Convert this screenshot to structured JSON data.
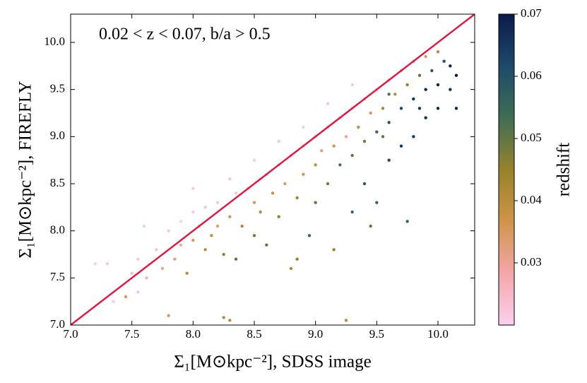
{
  "chart_data": {
    "type": "scatter",
    "annotation": "0.02 < z < 0.07, b/a > 0.5",
    "x_label": "Σ₁[M⊙kpc⁻²], SDSS image",
    "y_label": "Σ₁[M⊙kpc⁻²], FIREFLY",
    "colorbar_label": "redshift",
    "xlim": [
      7.0,
      10.3
    ],
    "ylim": [
      7.0,
      10.3
    ],
    "xticks": [
      {
        "value": 7,
        "label": "7.0"
      },
      {
        "value": 7.5,
        "label": "7.5"
      },
      {
        "value": 8,
        "label": "8.0"
      },
      {
        "value": 8.5,
        "label": "8.5"
      },
      {
        "value": 9,
        "label": "9.0"
      },
      {
        "value": 9.5,
        "label": "9.5"
      },
      {
        "value": 10,
        "label": "10.0"
      }
    ],
    "yticks": [
      {
        "value": 7,
        "label": "7.0"
      },
      {
        "value": 7.5,
        "label": "7.5"
      },
      {
        "value": 8,
        "label": "8.0"
      },
      {
        "value": 8.5,
        "label": "8.5"
      },
      {
        "value": 9,
        "label": "9.0"
      },
      {
        "value": 9.5,
        "label": "9.5"
      },
      {
        "value": 10,
        "label": "10.0"
      }
    ],
    "clim": [
      0.02,
      0.07
    ],
    "cticks": [
      0.03,
      0.04,
      0.05,
      0.06,
      0.07
    ],
    "colormap": [
      "#fbd0ee",
      "#f4a7a8",
      "#d0944a",
      "#97822c",
      "#3f6e54",
      "#1d4a6a",
      "#0c1a4a"
    ],
    "line_color": "#dc1c45",
    "x": [
      7.2,
      7.3,
      7.45,
      7.5,
      7.55,
      7.6,
      7.62,
      7.7,
      7.75,
      7.8,
      7.8,
      7.85,
      7.9,
      7.9,
      7.95,
      8.0,
      8.0,
      8.05,
      8.1,
      8.1,
      8.15,
      8.2,
      8.2,
      8.25,
      8.25,
      8.3,
      8.35,
      8.35,
      8.4,
      8.45,
      8.5,
      8.5,
      8.55,
      8.55,
      8.6,
      8.6,
      8.65,
      8.7,
      8.7,
      8.75,
      8.8,
      8.8,
      8.85,
      8.9,
      8.9,
      8.95,
      9.0,
      9.0,
      9.0,
      9.05,
      9.1,
      9.1,
      9.15,
      9.15,
      9.2,
      9.2,
      9.25,
      9.25,
      9.3,
      9.3,
      9.3,
      9.35,
      9.4,
      9.4,
      9.4,
      9.45,
      9.5,
      9.5,
      9.5,
      9.55,
      9.6,
      9.6,
      9.6,
      9.65,
      9.7,
      9.7,
      9.7,
      9.75,
      9.8,
      9.8,
      9.8,
      9.85,
      9.9,
      9.9,
      9.9,
      9.95,
      10.0,
      10.0,
      10.0,
      10.05,
      10.1,
      10.1,
      10.15,
      10.15,
      9.75,
      9.45,
      8.85,
      8.3,
      8.0,
      7.55,
      7.35,
      9.3,
      9.1,
      8.9,
      8.7,
      8.5,
      8.3,
      9.6,
      9.55,
      9.85
    ],
    "values": [
      7.65,
      7.65,
      7.3,
      7.55,
      7.7,
      8.05,
      7.5,
      7.8,
      7.6,
      7.1,
      8.0,
      7.7,
      8.1,
      7.85,
      7.55,
      8.2,
      7.9,
      8.05,
      7.8,
      8.25,
      7.95,
      8.3,
      8.05,
      7.75,
      7.08,
      8.15,
      8.4,
      7.7,
      8.05,
      8.45,
      8.3,
      7.95,
      8.55,
      8.2,
      8.6,
      7.85,
      8.4,
      8.7,
      8.15,
      8.5,
      7.6,
      8.8,
      8.35,
      8.9,
      8.6,
      7.95,
      9.0,
      8.7,
      8.3,
      8.85,
      9.1,
      8.5,
      7.8,
      8.9,
      9.2,
      8.7,
      7.05,
      9.0,
      9.3,
      8.8,
      8.2,
      9.1,
      9.4,
      8.95,
      8.5,
      9.25,
      9.5,
      9.05,
      8.3,
      9.3,
      9.6,
      9.15,
      8.75,
      9.45,
      9.7,
      9.3,
      8.9,
      9.55,
      9.8,
      9.4,
      9.0,
      9.65,
      9.85,
      9.5,
      9.2,
      9.7,
      9.9,
      9.55,
      9.3,
      9.8,
      9.75,
      9.5,
      9.65,
      9.3,
      8.1,
      8.05,
      7.7,
      7.05,
      8.45,
      7.35,
      7.25,
      9.55,
      9.35,
      9.1,
      8.95,
      8.75,
      8.55,
      9.45,
      9.0,
      9.3
    ],
    "c": [
      0.021,
      0.022,
      0.035,
      0.024,
      0.022,
      0.021,
      0.026,
      0.023,
      0.03,
      0.035,
      0.022,
      0.032,
      0.021,
      0.028,
      0.04,
      0.022,
      0.035,
      0.025,
      0.04,
      0.023,
      0.038,
      0.022,
      0.033,
      0.045,
      0.04,
      0.036,
      0.023,
      0.05,
      0.042,
      0.024,
      0.035,
      0.048,
      0.022,
      0.04,
      0.025,
      0.05,
      0.038,
      0.023,
      0.045,
      0.034,
      0.042,
      0.024,
      0.044,
      0.022,
      0.036,
      0.055,
      0.025,
      0.04,
      0.05,
      0.032,
      0.023,
      0.048,
      0.045,
      0.036,
      0.024,
      0.052,
      0.04,
      0.03,
      0.022,
      0.05,
      0.055,
      0.038,
      0.025,
      0.048,
      0.058,
      0.035,
      0.023,
      0.055,
      0.055,
      0.042,
      0.026,
      0.06,
      0.062,
      0.04,
      0.028,
      0.062,
      0.065,
      0.045,
      0.03,
      0.066,
      0.064,
      0.05,
      0.035,
      0.068,
      0.066,
      0.058,
      0.04,
      0.069,
      0.067,
      0.06,
      0.068,
      0.066,
      0.07,
      0.068,
      0.055,
      0.05,
      0.045,
      0.04,
      0.022,
      0.023,
      0.021,
      0.022,
      0.022,
      0.021,
      0.022,
      0.021,
      0.022,
      0.052,
      0.05,
      0.065
    ]
  }
}
